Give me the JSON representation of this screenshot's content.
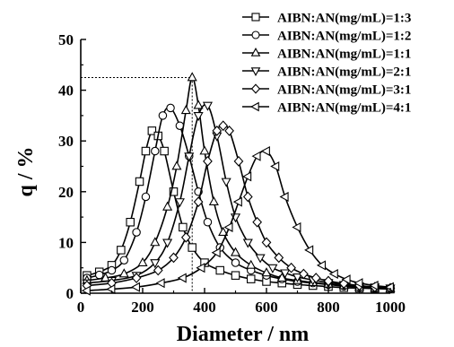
{
  "chart_data": {
    "type": "line",
    "xlabel": "Diameter / nm",
    "ylabel": "q / %",
    "xlim": [
      0,
      1000
    ],
    "ylim": [
      0,
      50
    ],
    "x_ticks": [
      0,
      200,
      400,
      600,
      800,
      1000
    ],
    "y_ticks": [
      0,
      10,
      20,
      30,
      40,
      50
    ],
    "grid": false,
    "legend_position": "top-right",
    "series": [
      {
        "name": "AIBN:AN(mg/mL)=1:3",
        "marker": "square",
        "x": [
          20,
          60,
          100,
          130,
          160,
          190,
          210,
          230,
          250,
          270,
          300,
          330,
          360,
          400,
          450,
          500,
          550,
          600,
          650,
          700,
          750,
          800,
          850,
          900,
          950,
          1000
        ],
        "y": [
          3.5,
          4.2,
          5.5,
          8.5,
          14,
          22,
          28,
          32,
          31,
          28,
          20,
          13,
          9,
          6,
          4.5,
          3.5,
          2.8,
          2.3,
          2,
          1.7,
          1.5,
          1.3,
          1.1,
          1.0,
          0.9,
          0.8
        ]
      },
      {
        "name": "AIBN:AN(mg/mL)=1:2",
        "marker": "circle",
        "x": [
          20,
          60,
          100,
          140,
          180,
          210,
          240,
          265,
          290,
          320,
          350,
          380,
          410,
          450,
          500,
          550,
          600,
          650,
          700,
          750,
          800,
          850,
          900,
          950,
          1000
        ],
        "y": [
          3,
          3.6,
          4.5,
          6.5,
          12,
          19,
          28,
          35,
          36.5,
          33,
          27,
          20,
          14,
          9,
          6,
          4.5,
          3.5,
          2.8,
          2.3,
          2,
          1.7,
          1.4,
          1.2,
          1.0,
          0.9
        ]
      },
      {
        "name": "AIBN:AN(mg/mL)=1:1",
        "marker": "triangle-up",
        "x": [
          20,
          80,
          140,
          200,
          240,
          280,
          310,
          340,
          360,
          380,
          400,
          430,
          460,
          500,
          550,
          600,
          650,
          700,
          750,
          800,
          850,
          900,
          950,
          1000
        ],
        "y": [
          2.5,
          3,
          3.8,
          6,
          10,
          17,
          25,
          36,
          42.5,
          37,
          28,
          18,
          12,
          8,
          5.5,
          4,
          3,
          2.5,
          2.1,
          1.8,
          1.5,
          1.2,
          1.0,
          0.9
        ]
      },
      {
        "name": "AIBN:AN(mg/mL)=2:1",
        "marker": "triangle-down",
        "x": [
          20,
          100,
          180,
          240,
          280,
          320,
          350,
          380,
          410,
          440,
          470,
          500,
          540,
          580,
          620,
          660,
          700,
          750,
          800,
          850,
          900,
          950,
          1000
        ],
        "y": [
          2,
          2.5,
          3.5,
          6,
          10,
          18,
          27,
          35,
          37,
          31,
          22,
          15,
          10,
          7,
          5,
          4,
          3.2,
          2.6,
          2.1,
          1.7,
          1.4,
          1.2,
          1.0
        ]
      },
      {
        "name": "AIBN:AN(mg/mL)=3:1",
        "marker": "diamond",
        "x": [
          20,
          100,
          180,
          250,
          300,
          340,
          380,
          410,
          440,
          460,
          480,
          510,
          540,
          570,
          600,
          640,
          680,
          720,
          760,
          800,
          850,
          900,
          950,
          1000
        ],
        "y": [
          1.5,
          2,
          3,
          4.5,
          7,
          11,
          18,
          26,
          32,
          33,
          32,
          26,
          19,
          14,
          10,
          7,
          5,
          3.8,
          3,
          2.4,
          1.9,
          1.5,
          1.2,
          1.0
        ]
      },
      {
        "name": "AIBN:AN(mg/mL)=4:1",
        "marker": "triangle-left",
        "x": [
          20,
          100,
          180,
          260,
          330,
          390,
          440,
          480,
          510,
          540,
          570,
          600,
          630,
          660,
          700,
          740,
          780,
          820,
          860,
          900,
          950,
          1000
        ],
        "y": [
          0.5,
          0.8,
          1.2,
          2,
          3,
          5,
          8,
          13,
          18,
          23,
          27,
          28,
          25,
          19,
          13,
          8.5,
          5.5,
          3.8,
          2.7,
          2,
          1.5,
          1.2
        ]
      }
    ],
    "annotations": [
      {
        "type": "dotted-guide",
        "x": 360,
        "y": 42.5
      }
    ]
  }
}
